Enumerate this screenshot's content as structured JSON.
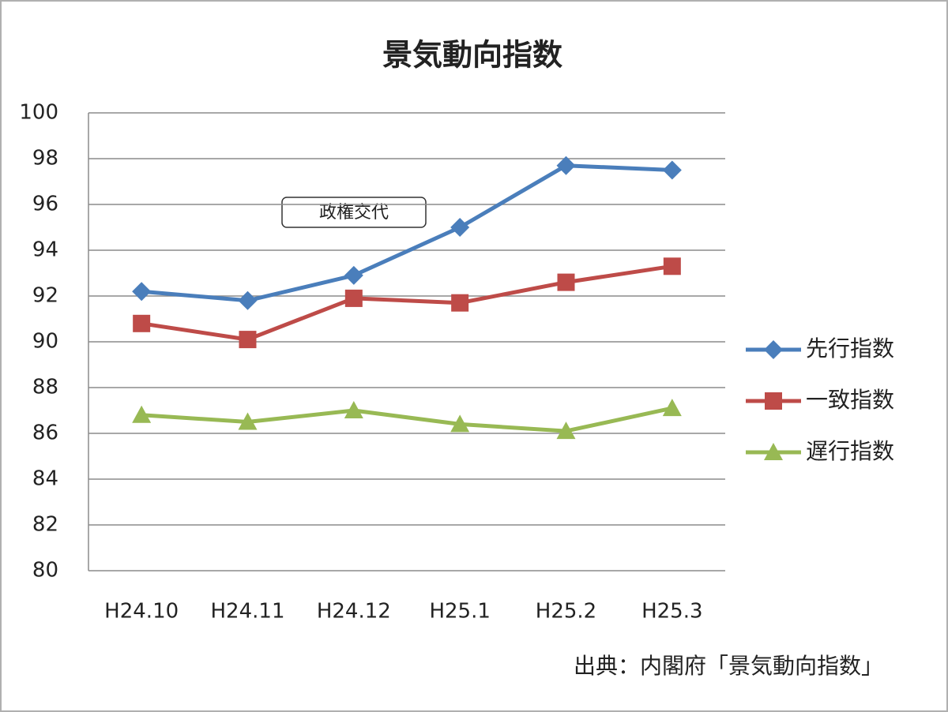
{
  "chart_data": {
    "type": "line",
    "title": "景気動向指数",
    "categories": [
      "H24.10",
      "H24.11",
      "H24.12",
      "H25.1",
      "H25.2",
      "H25.3"
    ],
    "series": [
      {
        "name": "先行指数",
        "color": "#4a7ebb",
        "marker": "diamond",
        "values": [
          92.2,
          91.8,
          92.9,
          95.0,
          97.7,
          97.5
        ]
      },
      {
        "name": "一致指数",
        "color": "#be4b48",
        "marker": "square",
        "values": [
          90.8,
          90.1,
          91.9,
          91.7,
          92.6,
          93.3
        ]
      },
      {
        "name": "遅行指数",
        "color": "#98b954",
        "marker": "triangle",
        "values": [
          86.8,
          86.5,
          87.0,
          86.4,
          86.1,
          87.1
        ]
      }
    ],
    "ylim": [
      80,
      100
    ],
    "yticks": [
      80,
      82,
      84,
      86,
      88,
      90,
      92,
      94,
      96,
      98,
      100
    ],
    "grid": true,
    "legend": "right",
    "annotation": "政権交代",
    "source": "出典：内閣府「景気動向指数」"
  }
}
